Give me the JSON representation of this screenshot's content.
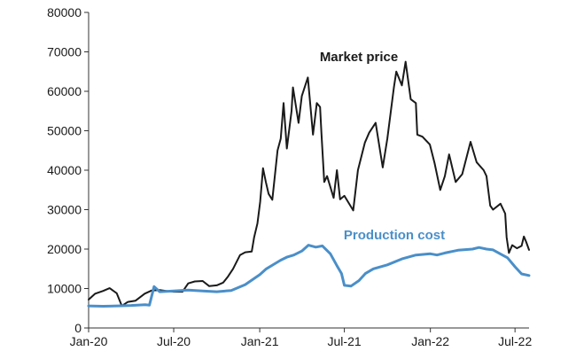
{
  "chart_data": {
    "type": "line",
    "title": "",
    "xlabel": "",
    "ylabel": "",
    "ylim": [
      0,
      80000
    ],
    "y_ticks": [
      0,
      10000,
      20000,
      30000,
      40000,
      50000,
      60000,
      70000,
      80000
    ],
    "y_tick_labels": [
      "0",
      "10000",
      "20000",
      "30000",
      "40000",
      "50000",
      "60000",
      "70000",
      "80000"
    ],
    "xlim": [
      "2020-01-01",
      "2022-07-31"
    ],
    "x_ticks": [
      "2020-01-01",
      "2020-07-01",
      "2021-01-01",
      "2021-07-01",
      "2022-01-01",
      "2022-07-01"
    ],
    "x_tick_labels": [
      "Jan-20",
      "Jul-20",
      "Jan-21",
      "Jul-21",
      "Jan-22",
      "Jul-22"
    ],
    "grid": false,
    "legend": "none",
    "series": [
      {
        "name": "Market price",
        "color": "#1a1a1a",
        "points": [
          [
            "2020-01-01",
            7200
          ],
          [
            "2020-01-15",
            8700
          ],
          [
            "2020-02-01",
            9400
          ],
          [
            "2020-02-15",
            10100
          ],
          [
            "2020-03-01",
            8800
          ],
          [
            "2020-03-12",
            5600
          ],
          [
            "2020-03-25",
            6600
          ],
          [
            "2020-04-10",
            6900
          ],
          [
            "2020-04-30",
            8700
          ],
          [
            "2020-05-15",
            9500
          ],
          [
            "2020-06-01",
            9600
          ],
          [
            "2020-06-15",
            9400
          ],
          [
            "2020-07-01",
            9200
          ],
          [
            "2020-07-20",
            9200
          ],
          [
            "2020-08-01",
            11300
          ],
          [
            "2020-08-15",
            11800
          ],
          [
            "2020-09-01",
            11900
          ],
          [
            "2020-09-15",
            10600
          ],
          [
            "2020-10-01",
            10800
          ],
          [
            "2020-10-15",
            11500
          ],
          [
            "2020-10-25",
            13000
          ],
          [
            "2020-11-05",
            15000
          ],
          [
            "2020-11-20",
            18500
          ],
          [
            "2020-12-01",
            19200
          ],
          [
            "2020-12-15",
            19400
          ],
          [
            "2020-12-20",
            23000
          ],
          [
            "2020-12-27",
            26500
          ],
          [
            "2021-01-02",
            32000
          ],
          [
            "2021-01-08",
            40500
          ],
          [
            "2021-01-14",
            37000
          ],
          [
            "2021-01-20",
            34000
          ],
          [
            "2021-01-28",
            32500
          ],
          [
            "2021-02-08",
            45000
          ],
          [
            "2021-02-15",
            48000
          ],
          [
            "2021-02-21",
            57000
          ],
          [
            "2021-02-28",
            45500
          ],
          [
            "2021-03-10",
            55000
          ],
          [
            "2021-03-13",
            61000
          ],
          [
            "2021-03-25",
            52000
          ],
          [
            "2021-04-01",
            58800
          ],
          [
            "2021-04-14",
            63500
          ],
          [
            "2021-04-25",
            49000
          ],
          [
            "2021-05-03",
            57000
          ],
          [
            "2021-05-10",
            56000
          ],
          [
            "2021-05-13",
            49500
          ],
          [
            "2021-05-19",
            37000
          ],
          [
            "2021-05-25",
            38500
          ],
          [
            "2021-06-08",
            33000
          ],
          [
            "2021-06-15",
            40000
          ],
          [
            "2021-06-22",
            32600
          ],
          [
            "2021-07-01",
            33500
          ],
          [
            "2021-07-20",
            29800
          ],
          [
            "2021-07-30",
            40000
          ],
          [
            "2021-08-14",
            47000
          ],
          [
            "2021-08-23",
            49500
          ],
          [
            "2021-09-06",
            52000
          ],
          [
            "2021-09-21",
            40700
          ],
          [
            "2021-10-01",
            48000
          ],
          [
            "2021-10-15",
            61000
          ],
          [
            "2021-10-20",
            65000
          ],
          [
            "2021-11-01",
            61500
          ],
          [
            "2021-11-09",
            67500
          ],
          [
            "2021-11-20",
            58000
          ],
          [
            "2021-12-01",
            57000
          ],
          [
            "2021-12-04",
            49000
          ],
          [
            "2021-12-15",
            48500
          ],
          [
            "2021-12-31",
            46500
          ],
          [
            "2022-01-10",
            41800
          ],
          [
            "2022-01-22",
            35000
          ],
          [
            "2022-02-01",
            38500
          ],
          [
            "2022-02-10",
            44000
          ],
          [
            "2022-02-24",
            37000
          ],
          [
            "2022-03-10",
            39000
          ],
          [
            "2022-03-28",
            47200
          ],
          [
            "2022-04-10",
            42000
          ],
          [
            "2022-04-25",
            40000
          ],
          [
            "2022-05-01",
            38500
          ],
          [
            "2022-05-09",
            31000
          ],
          [
            "2022-05-15",
            30000
          ],
          [
            "2022-05-31",
            31500
          ],
          [
            "2022-06-10",
            29000
          ],
          [
            "2022-06-13",
            23000
          ],
          [
            "2022-06-18",
            19000
          ],
          [
            "2022-06-25",
            21000
          ],
          [
            "2022-07-05",
            20200
          ],
          [
            "2022-07-15",
            20800
          ],
          [
            "2022-07-20",
            23200
          ],
          [
            "2022-07-25",
            21800
          ],
          [
            "2022-07-31",
            19800
          ]
        ]
      },
      {
        "name": "Production cost",
        "color": "#4a8fc9",
        "points": [
          [
            "2020-01-01",
            5600
          ],
          [
            "2020-02-01",
            5500
          ],
          [
            "2020-03-01",
            5600
          ],
          [
            "2020-04-01",
            5700
          ],
          [
            "2020-05-01",
            5900
          ],
          [
            "2020-05-10",
            5800
          ],
          [
            "2020-05-20",
            10500
          ],
          [
            "2020-06-01",
            9200
          ],
          [
            "2020-07-01",
            9400
          ],
          [
            "2020-08-01",
            9600
          ],
          [
            "2020-09-01",
            9400
          ],
          [
            "2020-10-01",
            9200
          ],
          [
            "2020-11-01",
            9500
          ],
          [
            "2020-12-01",
            11000
          ],
          [
            "2021-01-01",
            13500
          ],
          [
            "2021-01-15",
            15000
          ],
          [
            "2021-02-01",
            16200
          ],
          [
            "2021-02-15",
            17200
          ],
          [
            "2021-03-01",
            18000
          ],
          [
            "2021-03-15",
            18500
          ],
          [
            "2021-04-01",
            19500
          ],
          [
            "2021-04-15",
            21000
          ],
          [
            "2021-05-01",
            20500
          ],
          [
            "2021-05-15",
            20800
          ],
          [
            "2021-06-01",
            18800
          ],
          [
            "2021-06-15",
            15800
          ],
          [
            "2021-06-25",
            13800
          ],
          [
            "2021-07-01",
            10800
          ],
          [
            "2021-07-15",
            10600
          ],
          [
            "2021-08-01",
            12000
          ],
          [
            "2021-08-15",
            13800
          ],
          [
            "2021-09-01",
            15000
          ],
          [
            "2021-10-01",
            16000
          ],
          [
            "2021-11-01",
            17500
          ],
          [
            "2021-12-01",
            18500
          ],
          [
            "2022-01-01",
            18800
          ],
          [
            "2022-01-15",
            18500
          ],
          [
            "2022-02-01",
            19000
          ],
          [
            "2022-03-01",
            19700
          ],
          [
            "2022-04-01",
            20000
          ],
          [
            "2022-04-15",
            20400
          ],
          [
            "2022-05-01",
            20000
          ],
          [
            "2022-05-15",
            19800
          ],
          [
            "2022-06-01",
            18700
          ],
          [
            "2022-06-15",
            17800
          ],
          [
            "2022-07-01",
            15500
          ],
          [
            "2022-07-15",
            13700
          ],
          [
            "2022-07-31",
            13300
          ]
        ]
      }
    ],
    "annotations": [
      {
        "text": "Market price",
        "series": "Market price"
      },
      {
        "text": "Production cost",
        "series": "Production cost"
      }
    ]
  }
}
